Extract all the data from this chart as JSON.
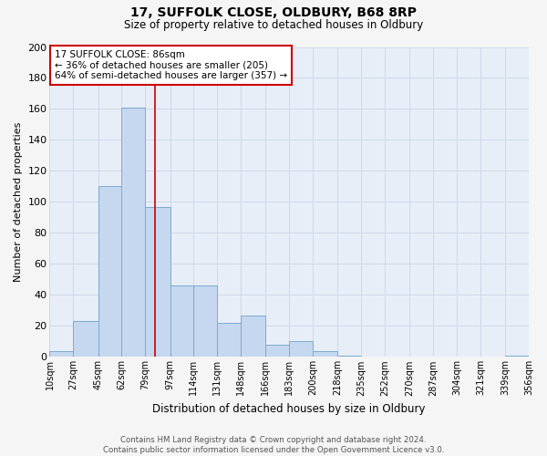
{
  "title": "17, SUFFOLK CLOSE, OLDBURY, B68 8RP",
  "subtitle": "Size of property relative to detached houses in Oldbury",
  "xlabel": "Distribution of detached houses by size in Oldbury",
  "ylabel": "Number of detached properties",
  "footer_line1": "Contains HM Land Registry data © Crown copyright and database right 2024.",
  "footer_line2": "Contains public sector information licensed under the Open Government Licence v3.0.",
  "annotation_title": "17 SUFFOLK CLOSE: 86sqm",
  "annotation_line1": "← 36% of detached houses are smaller (205)",
  "annotation_line2": "64% of semi-detached houses are larger (357) →",
  "property_line_x": 86,
  "bar_edges": [
    10,
    27,
    45,
    62,
    79,
    97,
    114,
    131,
    148,
    166,
    183,
    200,
    218,
    235,
    252,
    270,
    287,
    304,
    321,
    339,
    356
  ],
  "bar_heights": [
    4,
    23,
    110,
    161,
    97,
    46,
    46,
    22,
    27,
    8,
    10,
    4,
    1,
    0,
    0,
    0,
    0,
    0,
    0,
    1
  ],
  "bar_color": "#c5d8f0",
  "bar_edge_color": "#7aaad0",
  "line_color": "#cc0000",
  "grid_color": "#cdd8e8",
  "bg_color": "#e8eef8",
  "fig_color": "#f5f5f5",
  "ylim": [
    0,
    200
  ],
  "yticks": [
    0,
    20,
    40,
    60,
    80,
    100,
    120,
    140,
    160,
    180,
    200
  ],
  "tick_labels": [
    "10sqm",
    "27sqm",
    "45sqm",
    "62sqm",
    "79sqm",
    "97sqm",
    "114sqm",
    "131sqm",
    "148sqm",
    "166sqm",
    "183sqm",
    "200sqm",
    "218sqm",
    "235sqm",
    "252sqm",
    "270sqm",
    "287sqm",
    "304sqm",
    "321sqm",
    "339sqm",
    "356sqm"
  ]
}
